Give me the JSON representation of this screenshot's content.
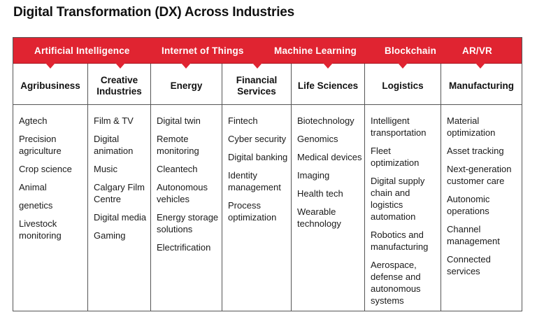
{
  "title": "Digital Transformation (DX) Across Industries",
  "colors": {
    "banner": "#e02431",
    "border": "#555555"
  },
  "technologies": [
    "Artificial Intelligence",
    "Internet of Things",
    "Machine Learning",
    "Blockchain",
    "AR/VR"
  ],
  "industries": [
    {
      "name": "Agribusiness",
      "items": [
        "Agtech",
        "Precision agriculture",
        "Crop science",
        "Animal",
        "genetics",
        "Livestock monitoring"
      ]
    },
    {
      "name": "Creative Industries",
      "items": [
        "Film & TV",
        "Digital animation",
        "Music",
        "Calgary Film Centre",
        "Digital media",
        "Gaming"
      ]
    },
    {
      "name": "Energy",
      "items": [
        "Digital twin",
        "Remote monitoring",
        "Cleantech",
        "Autonomous vehicles",
        "Energy storage solutions",
        "Electrification"
      ]
    },
    {
      "name": "Financial Services",
      "items": [
        "Fintech",
        "Cyber security",
        "Digital banking",
        "Identity management",
        "Process optimization"
      ]
    },
    {
      "name": "Life Sciences",
      "items": [
        "Biotechnology",
        "Genomics",
        "Medical devices",
        "Imaging",
        "Health tech",
        "Wearable technology"
      ]
    },
    {
      "name": "Logistics",
      "items": [
        "Intelligent transportation",
        "Fleet optimization",
        "Digital supply chain and logistics automation",
        "Robotics and manufacturing",
        "Aerospace, defense and autonomous systems"
      ]
    },
    {
      "name": "Manufacturing",
      "items": [
        "Material optimization",
        "Asset tracking",
        "Next-generation customer care",
        "Autonomic operations",
        "Channel management",
        "Connected services"
      ]
    }
  ]
}
